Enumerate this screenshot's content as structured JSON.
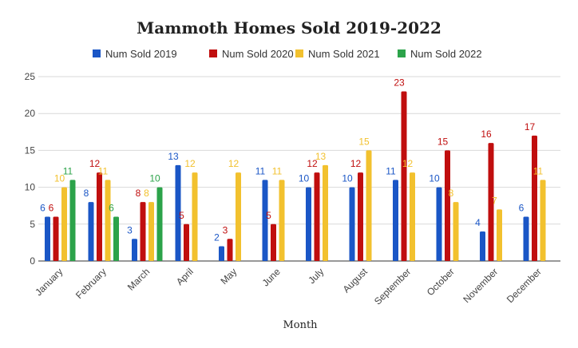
{
  "chart_data": {
    "type": "bar",
    "title": "Mammoth Homes Sold 2019-2022",
    "xlabel": "Month",
    "ylabel": "",
    "ylim": [
      0,
      25
    ],
    "yticks": [
      0,
      5,
      10,
      15,
      20,
      25
    ],
    "grid": true,
    "legend_position": "top",
    "categories": [
      "January",
      "February",
      "March",
      "April",
      "May",
      "June",
      "July",
      "August",
      "September",
      "October",
      "November",
      "December"
    ],
    "series": [
      {
        "name": "Num Sold 2019",
        "color": "#1a56c6",
        "values": [
          6,
          8,
          3,
          13,
          2,
          11,
          10,
          10,
          11,
          10,
          4,
          6
        ]
      },
      {
        "name": "Num Sold 2020",
        "color": "#c00e0e",
        "values": [
          6,
          12,
          8,
          5,
          3,
          5,
          12,
          12,
          23,
          15,
          16,
          17
        ]
      },
      {
        "name": "Num Sold 2021",
        "color": "#f2c12e",
        "values": [
          10,
          11,
          8,
          12,
          12,
          11,
          13,
          15,
          12,
          8,
          7,
          11
        ]
      },
      {
        "name": "Num Sold 2022",
        "color": "#2ca34a",
        "values": [
          11,
          6,
          10,
          null,
          null,
          null,
          null,
          null,
          null,
          null,
          null,
          null
        ]
      }
    ]
  }
}
